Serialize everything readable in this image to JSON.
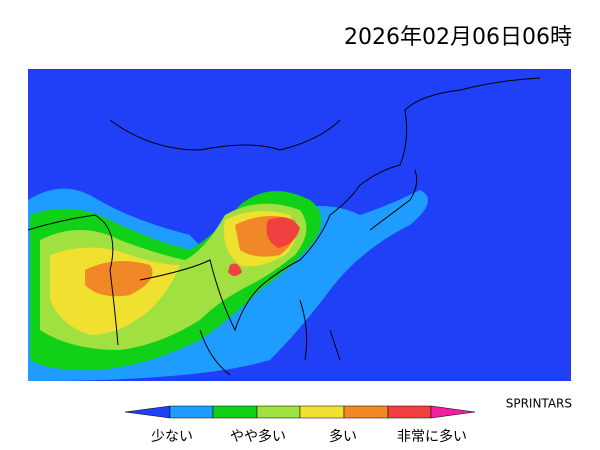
{
  "header": {
    "title": "2026年02月06日06時",
    "credit": "SPRINTARS"
  },
  "legend": {
    "labels": [
      "少ない",
      "やや多い",
      "多い",
      "非常に多い"
    ]
  }
}
